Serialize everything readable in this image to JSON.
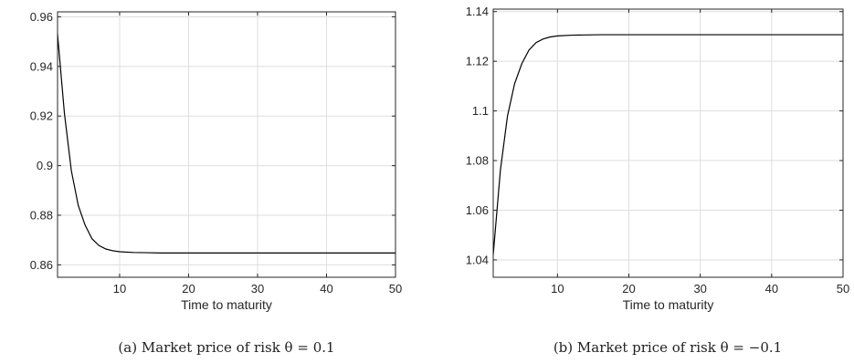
{
  "chart_data": [
    {
      "type": "line",
      "panel_label": "(a)",
      "caption": "Market price of risk θ = 0.1",
      "xlabel": "Time to maturity",
      "ylabel": "",
      "xlim": [
        1,
        50
      ],
      "ylim": [
        0.855,
        0.962
      ],
      "xticks": [
        10,
        20,
        30,
        40,
        50
      ],
      "yticks": [
        0.86,
        0.88,
        0.9,
        0.92,
        0.94,
        0.96
      ],
      "ytick_labels": [
        "0.86",
        "0.88",
        "0.9",
        "0.92",
        "0.94",
        "0.96"
      ],
      "grid": true,
      "series": [
        {
          "x": [
            1,
            2,
            3,
            4,
            5,
            6,
            7,
            8,
            9,
            10,
            12,
            14,
            16,
            18,
            20,
            25,
            30,
            35,
            40,
            45,
            50
          ],
          "y": [
            0.953,
            0.921,
            0.898,
            0.884,
            0.876,
            0.8705,
            0.8678,
            0.8664,
            0.8657,
            0.8653,
            0.865,
            0.8649,
            0.8648,
            0.8648,
            0.8648,
            0.8648,
            0.8648,
            0.8648,
            0.8648,
            0.8648,
            0.8648
          ]
        }
      ]
    },
    {
      "type": "line",
      "panel_label": "(b)",
      "caption": "Market price of risk θ = −0.1",
      "xlabel": "Time to maturity",
      "ylabel": "",
      "xlim": [
        1,
        50
      ],
      "ylim": [
        1.033,
        1.141
      ],
      "xticks": [
        10,
        20,
        30,
        40,
        50
      ],
      "yticks": [
        1.04,
        1.06,
        1.08,
        1.1,
        1.12,
        1.14
      ],
      "ytick_labels": [
        "1.04",
        "1.06",
        "1.08",
        "1.1",
        "1.12",
        "1.14"
      ],
      "grid": true,
      "series": [
        {
          "x": [
            1,
            2,
            3,
            4,
            5,
            6,
            7,
            8,
            9,
            10,
            12,
            14,
            16,
            18,
            20,
            25,
            30,
            35,
            40,
            45,
            50
          ],
          "y": [
            1.042,
            1.076,
            1.098,
            1.111,
            1.119,
            1.1245,
            1.1275,
            1.129,
            1.1298,
            1.1302,
            1.1305,
            1.1306,
            1.1307,
            1.1307,
            1.1307,
            1.1307,
            1.1307,
            1.1307,
            1.1307,
            1.1307,
            1.1307
          ]
        }
      ]
    }
  ]
}
